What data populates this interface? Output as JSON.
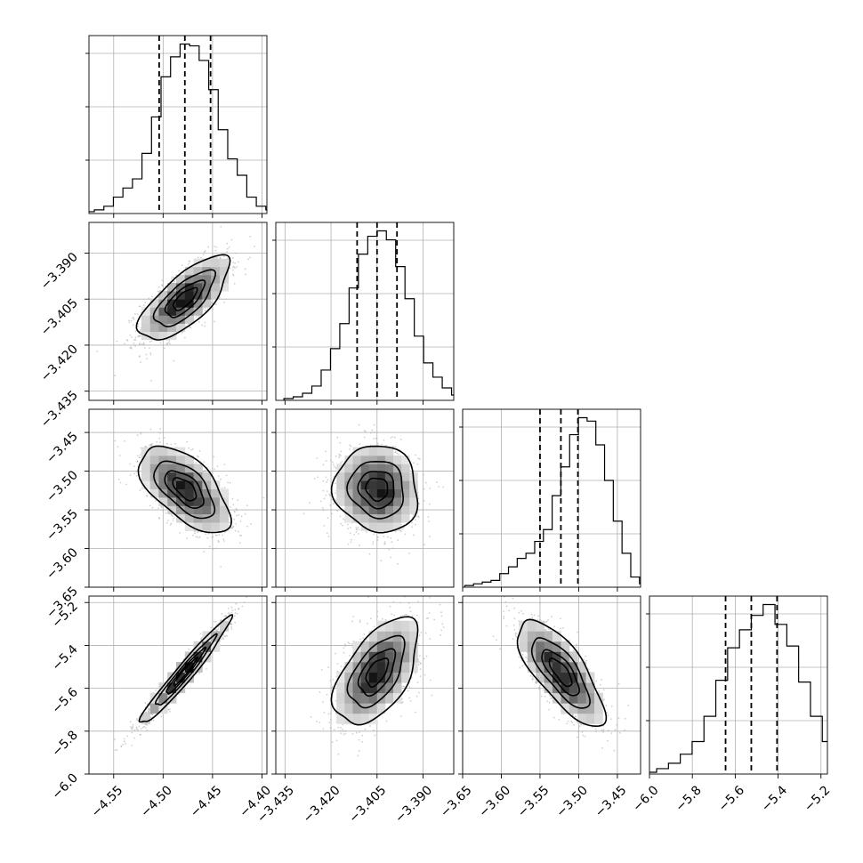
{
  "chart_data": {
    "type": "corner",
    "parameters": [
      {
        "ticks": [
          -4.55,
          -4.5,
          -4.45,
          -4.4
        ],
        "tick_labels": [
          "−4.55",
          "−4.50",
          "−4.45",
          "−4.40"
        ],
        "range": [
          -4.575,
          -4.395
        ],
        "mean": -4.478,
        "sd": 0.022,
        "quantiles": [
          -4.504,
          -4.478,
          -4.452
        ]
      },
      {
        "ticks": [
          -3.435,
          -3.42,
          -3.405,
          -3.39
        ],
        "tick_labels": [
          "−3.435",
          "−3.420",
          "−3.405",
          "−3.390"
        ],
        "range": [
          -3.438,
          -3.38
        ],
        "mean": -3.405,
        "sd": 0.0066,
        "quantiles": [
          -3.4115,
          -3.405,
          -3.3985
        ]
      },
      {
        "ticks": [
          -3.65,
          -3.6,
          -3.55,
          -3.5,
          -3.45
        ],
        "tick_labels": [
          "−3.65",
          "−3.60",
          "−3.55",
          "−3.50",
          "−3.45"
        ],
        "range": [
          -3.65,
          -3.42
        ],
        "mean": -3.523,
        "sd": 0.027,
        "quantiles": [
          -3.55,
          -3.523,
          -3.501
        ]
      },
      {
        "ticks": [
          -6.0,
          -5.8,
          -5.6,
          -5.4,
          -5.2
        ],
        "tick_labels": [
          "−6.0",
          "−5.8",
          "−5.6",
          "−5.4",
          "−5.2"
        ],
        "range": [
          -6.0,
          -5.17
        ],
        "mean": -5.525,
        "sd": 0.12,
        "quantiles": [
          -5.645,
          -5.525,
          -5.405
        ]
      }
    ],
    "correlations": [
      [
        1,
        0.72,
        -0.6,
        0.97
      ],
      [
        0.72,
        1,
        -0.08,
        0.55
      ],
      [
        -0.6,
        -0.08,
        1,
        -0.75
      ],
      [
        0.97,
        0.55,
        -0.75,
        1
      ]
    ],
    "histograms": [
      [
        1,
        2,
        4,
        9,
        14,
        19,
        33,
        53,
        75,
        86,
        93,
        92,
        84,
        68,
        46,
        30,
        21,
        9,
        4,
        2,
        1
      ],
      [
        1,
        2,
        4,
        8,
        17,
        29,
        43,
        63,
        82,
        92,
        95,
        90,
        75,
        57,
        36,
        21,
        13,
        7,
        3,
        1
      ],
      [
        1,
        2,
        3,
        4,
        8,
        12,
        17,
        20,
        27,
        34,
        54,
        71,
        90,
        100,
        98,
        84,
        63,
        39,
        20,
        6,
        2,
        1
      ],
      [
        1,
        1,
        3,
        6,
        11,
        18,
        32,
        52,
        70,
        80,
        88,
        94,
        83,
        71,
        51,
        32,
        18,
        9,
        4,
        1
      ]
    ],
    "grid": true,
    "contour_levels_sigma": [
      0.5,
      1.0,
      1.5,
      2.0
    ]
  }
}
